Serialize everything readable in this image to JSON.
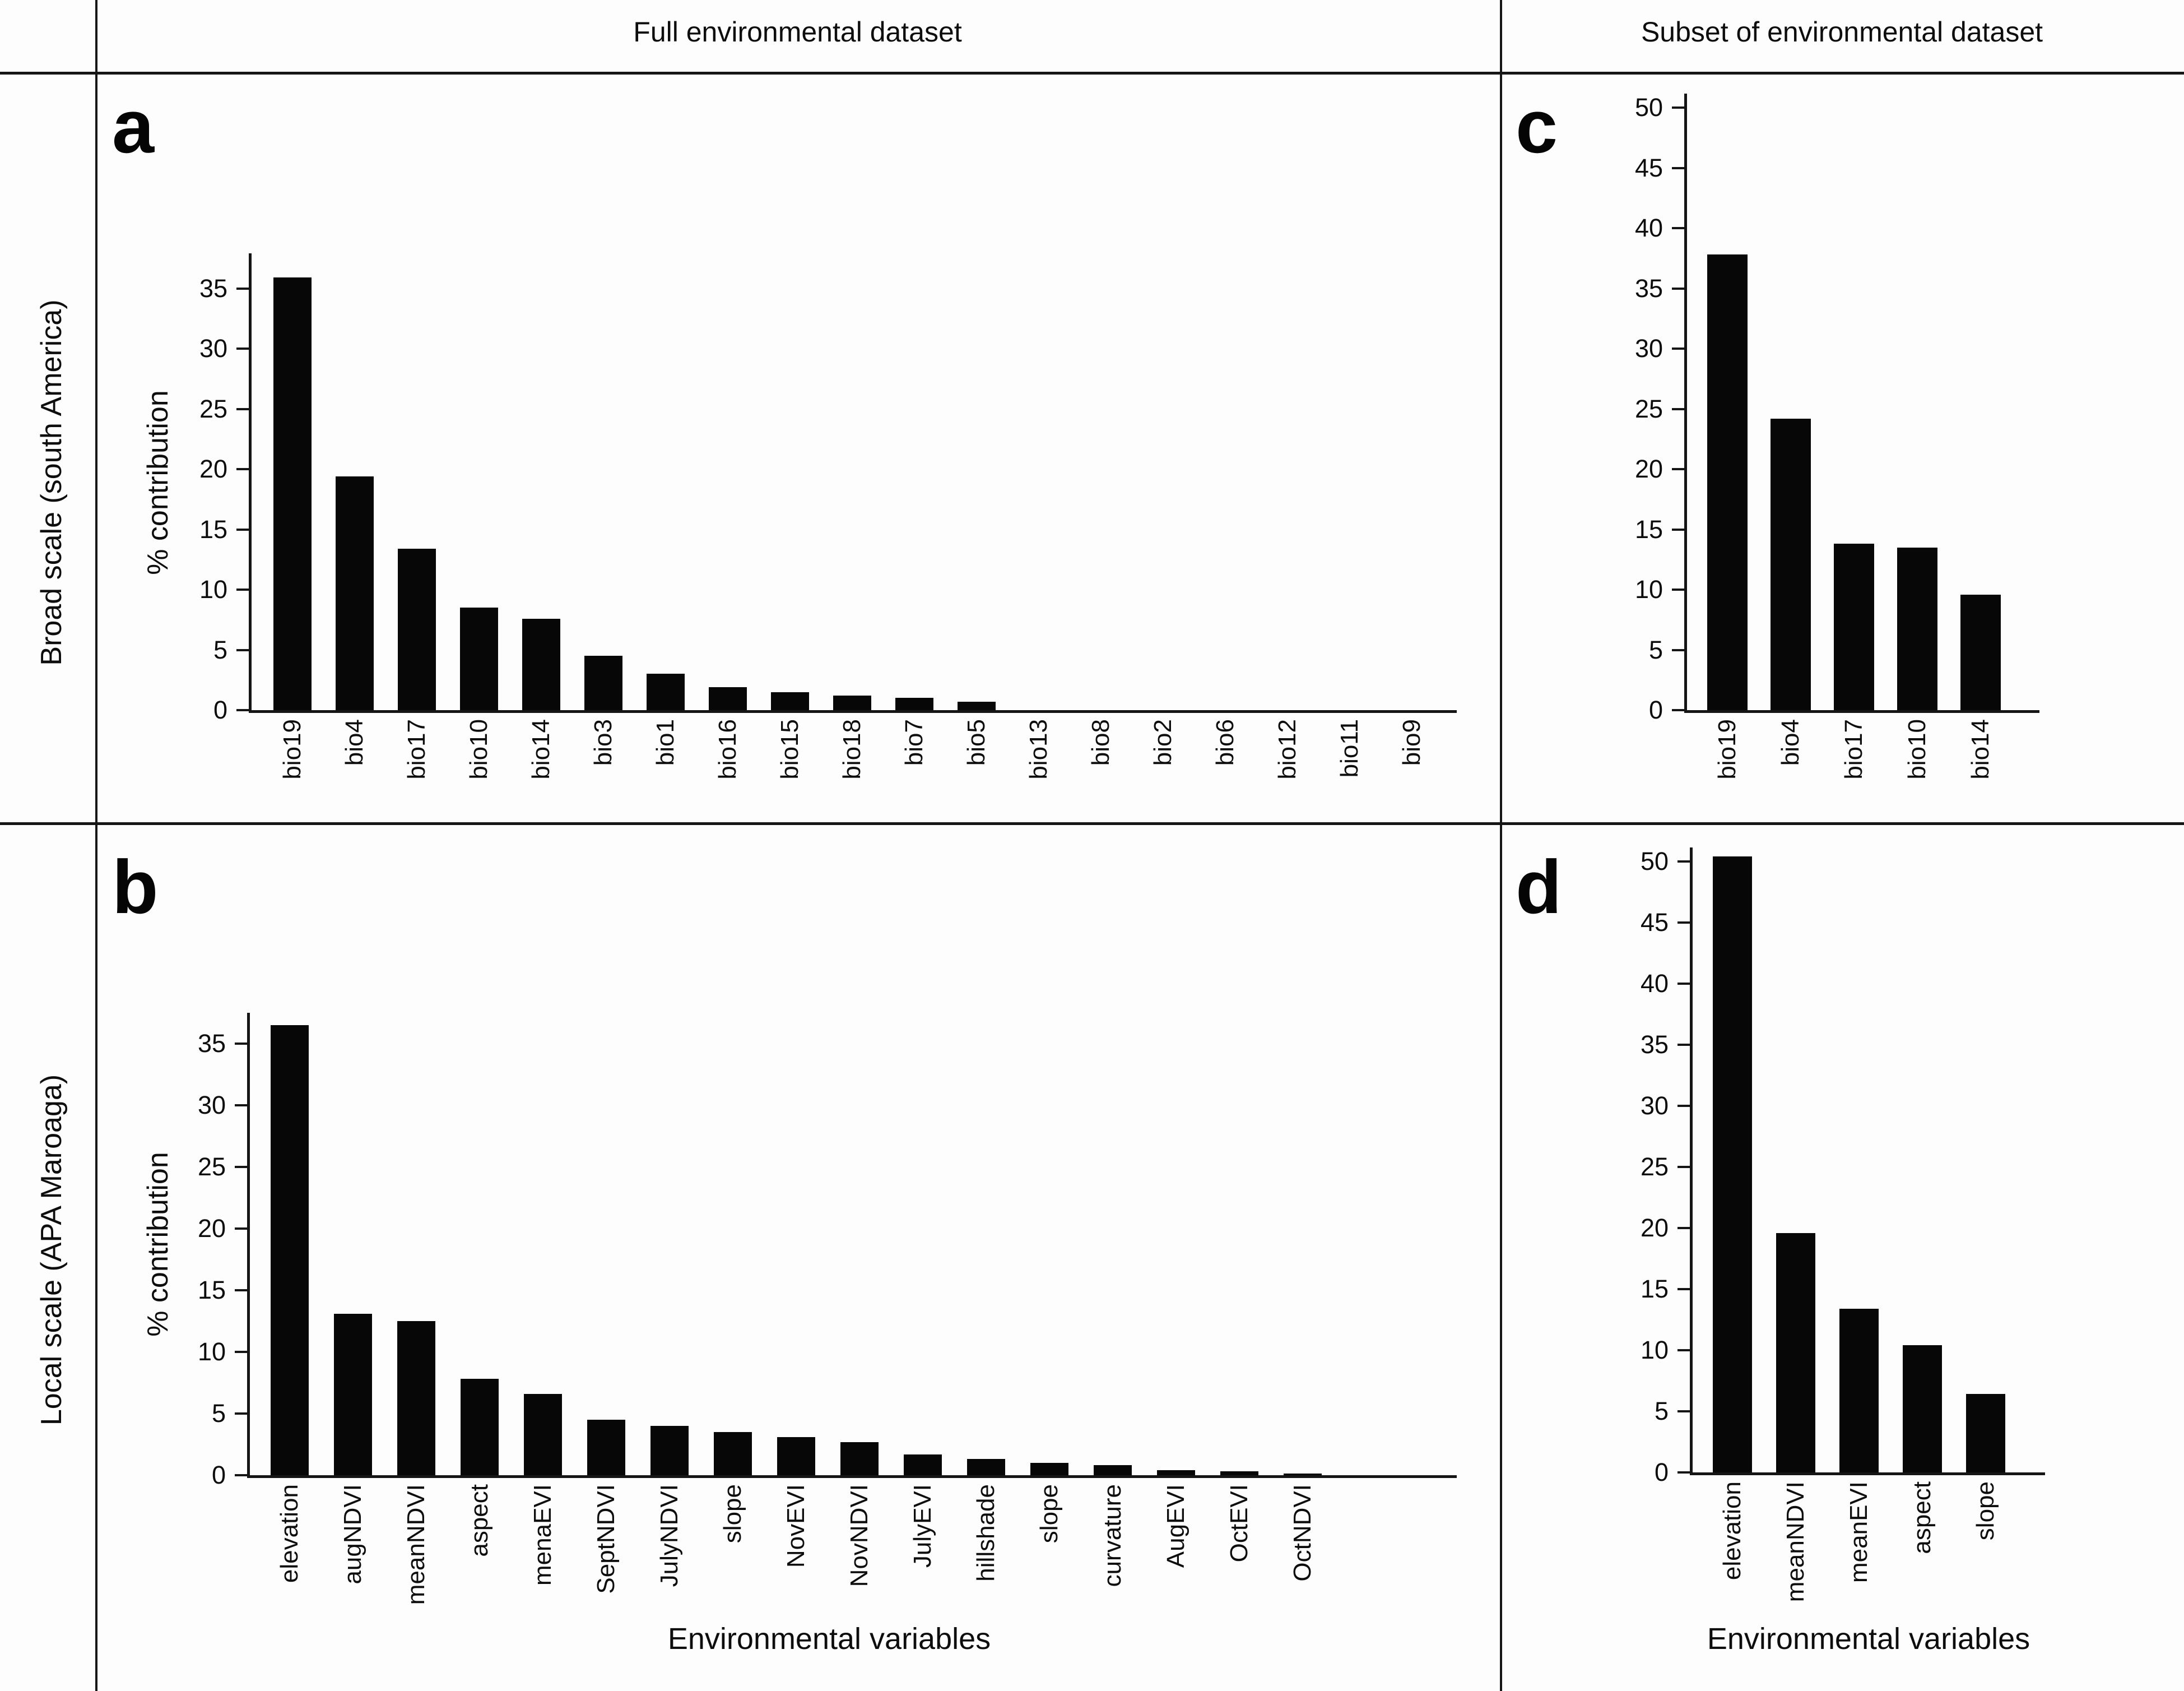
{
  "header": {
    "full_dataset": "Full environmental dataset",
    "subset_dataset": "Subset of environmental dataset"
  },
  "row_labels": {
    "broad": "Broad scale (south America)",
    "local": "Local scale (APA Maroaga)"
  },
  "axis": {
    "y_title": "% contribution",
    "x_title": "Environmental variables"
  },
  "chart_data": [
    {
      "panel": "a",
      "type": "bar",
      "ylabel": "% contribution",
      "ylim": [
        0,
        37.5
      ],
      "yticks": [
        0,
        5,
        10,
        15,
        20,
        25,
        30,
        35
      ],
      "grid": "off",
      "categories": [
        "bio19",
        "bio4",
        "bio17",
        "bio10",
        "bio14",
        "bio3",
        "bio1",
        "bio16",
        "bio15",
        "bio18",
        "bio7",
        "bio5",
        "bio13",
        "bio8",
        "bio2",
        "bio6",
        "bio12",
        "bio11",
        "bio9"
      ],
      "values": [
        35.9,
        19.4,
        13.4,
        8.5,
        7.6,
        4.5,
        3.0,
        1.9,
        1.5,
        1.2,
        1.0,
        0.7,
        0,
        0,
        0,
        0,
        0,
        0,
        0
      ]
    },
    {
      "panel": "b",
      "type": "bar",
      "ylabel": "% contribution",
      "xlabel": "Environmental variables",
      "ylim": [
        0,
        37.5
      ],
      "yticks": [
        0,
        5,
        10,
        15,
        20,
        25,
        30,
        35
      ],
      "grid": "off",
      "categories": [
        "elevation",
        "augNDVI",
        "meanNDVI",
        "aspect",
        "menaEVI",
        "SeptNDVI",
        "JulyNDVI",
        "slope",
        "NovEVI",
        "NovNDVI",
        "JulyEVI",
        "hillshade",
        "slope",
        "curvature",
        "AugEVI",
        "OctEVI",
        "OctNDVI"
      ],
      "values": [
        36.5,
        13.1,
        12.5,
        7.8,
        6.6,
        4.5,
        4.0,
        3.5,
        3.1,
        2.7,
        1.7,
        1.3,
        1.0,
        0.8,
        0.4,
        0.3,
        0.15
      ]
    },
    {
      "panel": "c",
      "type": "bar",
      "ylim": [
        0,
        51
      ],
      "yticks": [
        0,
        5,
        10,
        15,
        20,
        25,
        30,
        35,
        40,
        45,
        50
      ],
      "grid": "off",
      "categories": [
        "bio19",
        "bio4",
        "bio17",
        "bio10",
        "bio14"
      ],
      "values": [
        37.8,
        24.2,
        13.8,
        13.5,
        9.6
      ]
    },
    {
      "panel": "d",
      "type": "bar",
      "xlabel": "Environmental variables",
      "ylim": [
        0,
        51
      ],
      "yticks": [
        0,
        5,
        10,
        15,
        20,
        25,
        30,
        35,
        40,
        45,
        50
      ],
      "grid": "off",
      "categories": [
        "elevation",
        "meanNDVI",
        "meanEVI",
        "aspect",
        "slope"
      ],
      "values": [
        50.4,
        19.6,
        13.4,
        10.4,
        6.4
      ]
    }
  ]
}
